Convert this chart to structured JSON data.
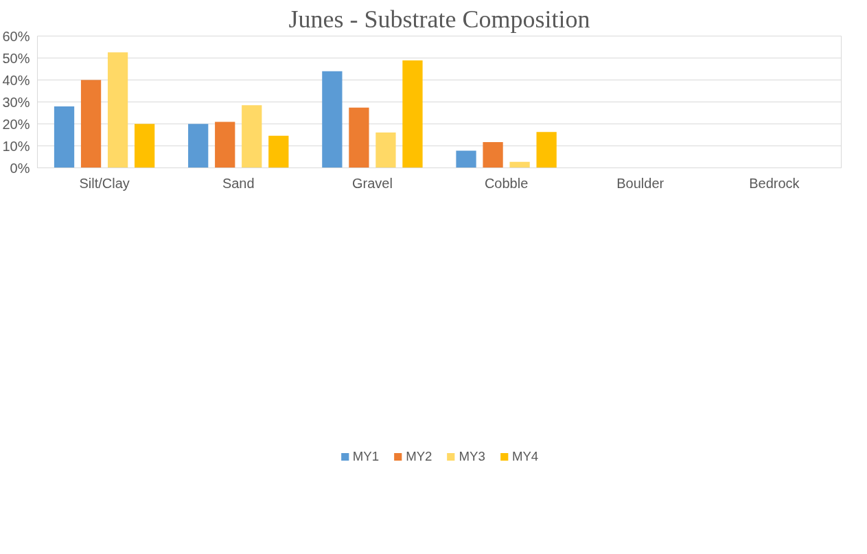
{
  "chart_data": {
    "type": "bar",
    "title": "Junes - Substrate Composition",
    "categories": [
      "Silt/Clay",
      "Sand",
      "Gravel",
      "Cobble",
      "Boulder",
      "Bedrock"
    ],
    "series": [
      {
        "name": "MY1",
        "color": "#5b9bd5",
        "values": [
          28,
          20,
          44,
          7.8,
          0,
          0
        ]
      },
      {
        "name": "MY2",
        "color": "#ed7d31",
        "values": [
          40,
          20.9,
          27.4,
          11.7,
          0,
          0
        ]
      },
      {
        "name": "MY3",
        "color": "#ffd966",
        "values": [
          52.6,
          28.5,
          16.1,
          2.7,
          0,
          0
        ]
      },
      {
        "name": "MY4",
        "color": "#ffc000",
        "values": [
          20,
          14.6,
          48.9,
          16.3,
          0,
          0
        ]
      }
    ],
    "ylim": [
      0,
      60
    ],
    "yticks": [
      {
        "value": 0,
        "label": "0%"
      },
      {
        "value": 10,
        "label": "10%"
      },
      {
        "value": 20,
        "label": "20%"
      },
      {
        "value": 30,
        "label": "30%"
      },
      {
        "value": 40,
        "label": "40%"
      },
      {
        "value": 50,
        "label": "50%"
      },
      {
        "value": 60,
        "label": "60%"
      }
    ],
    "grid": "y",
    "legend": "bottom"
  }
}
